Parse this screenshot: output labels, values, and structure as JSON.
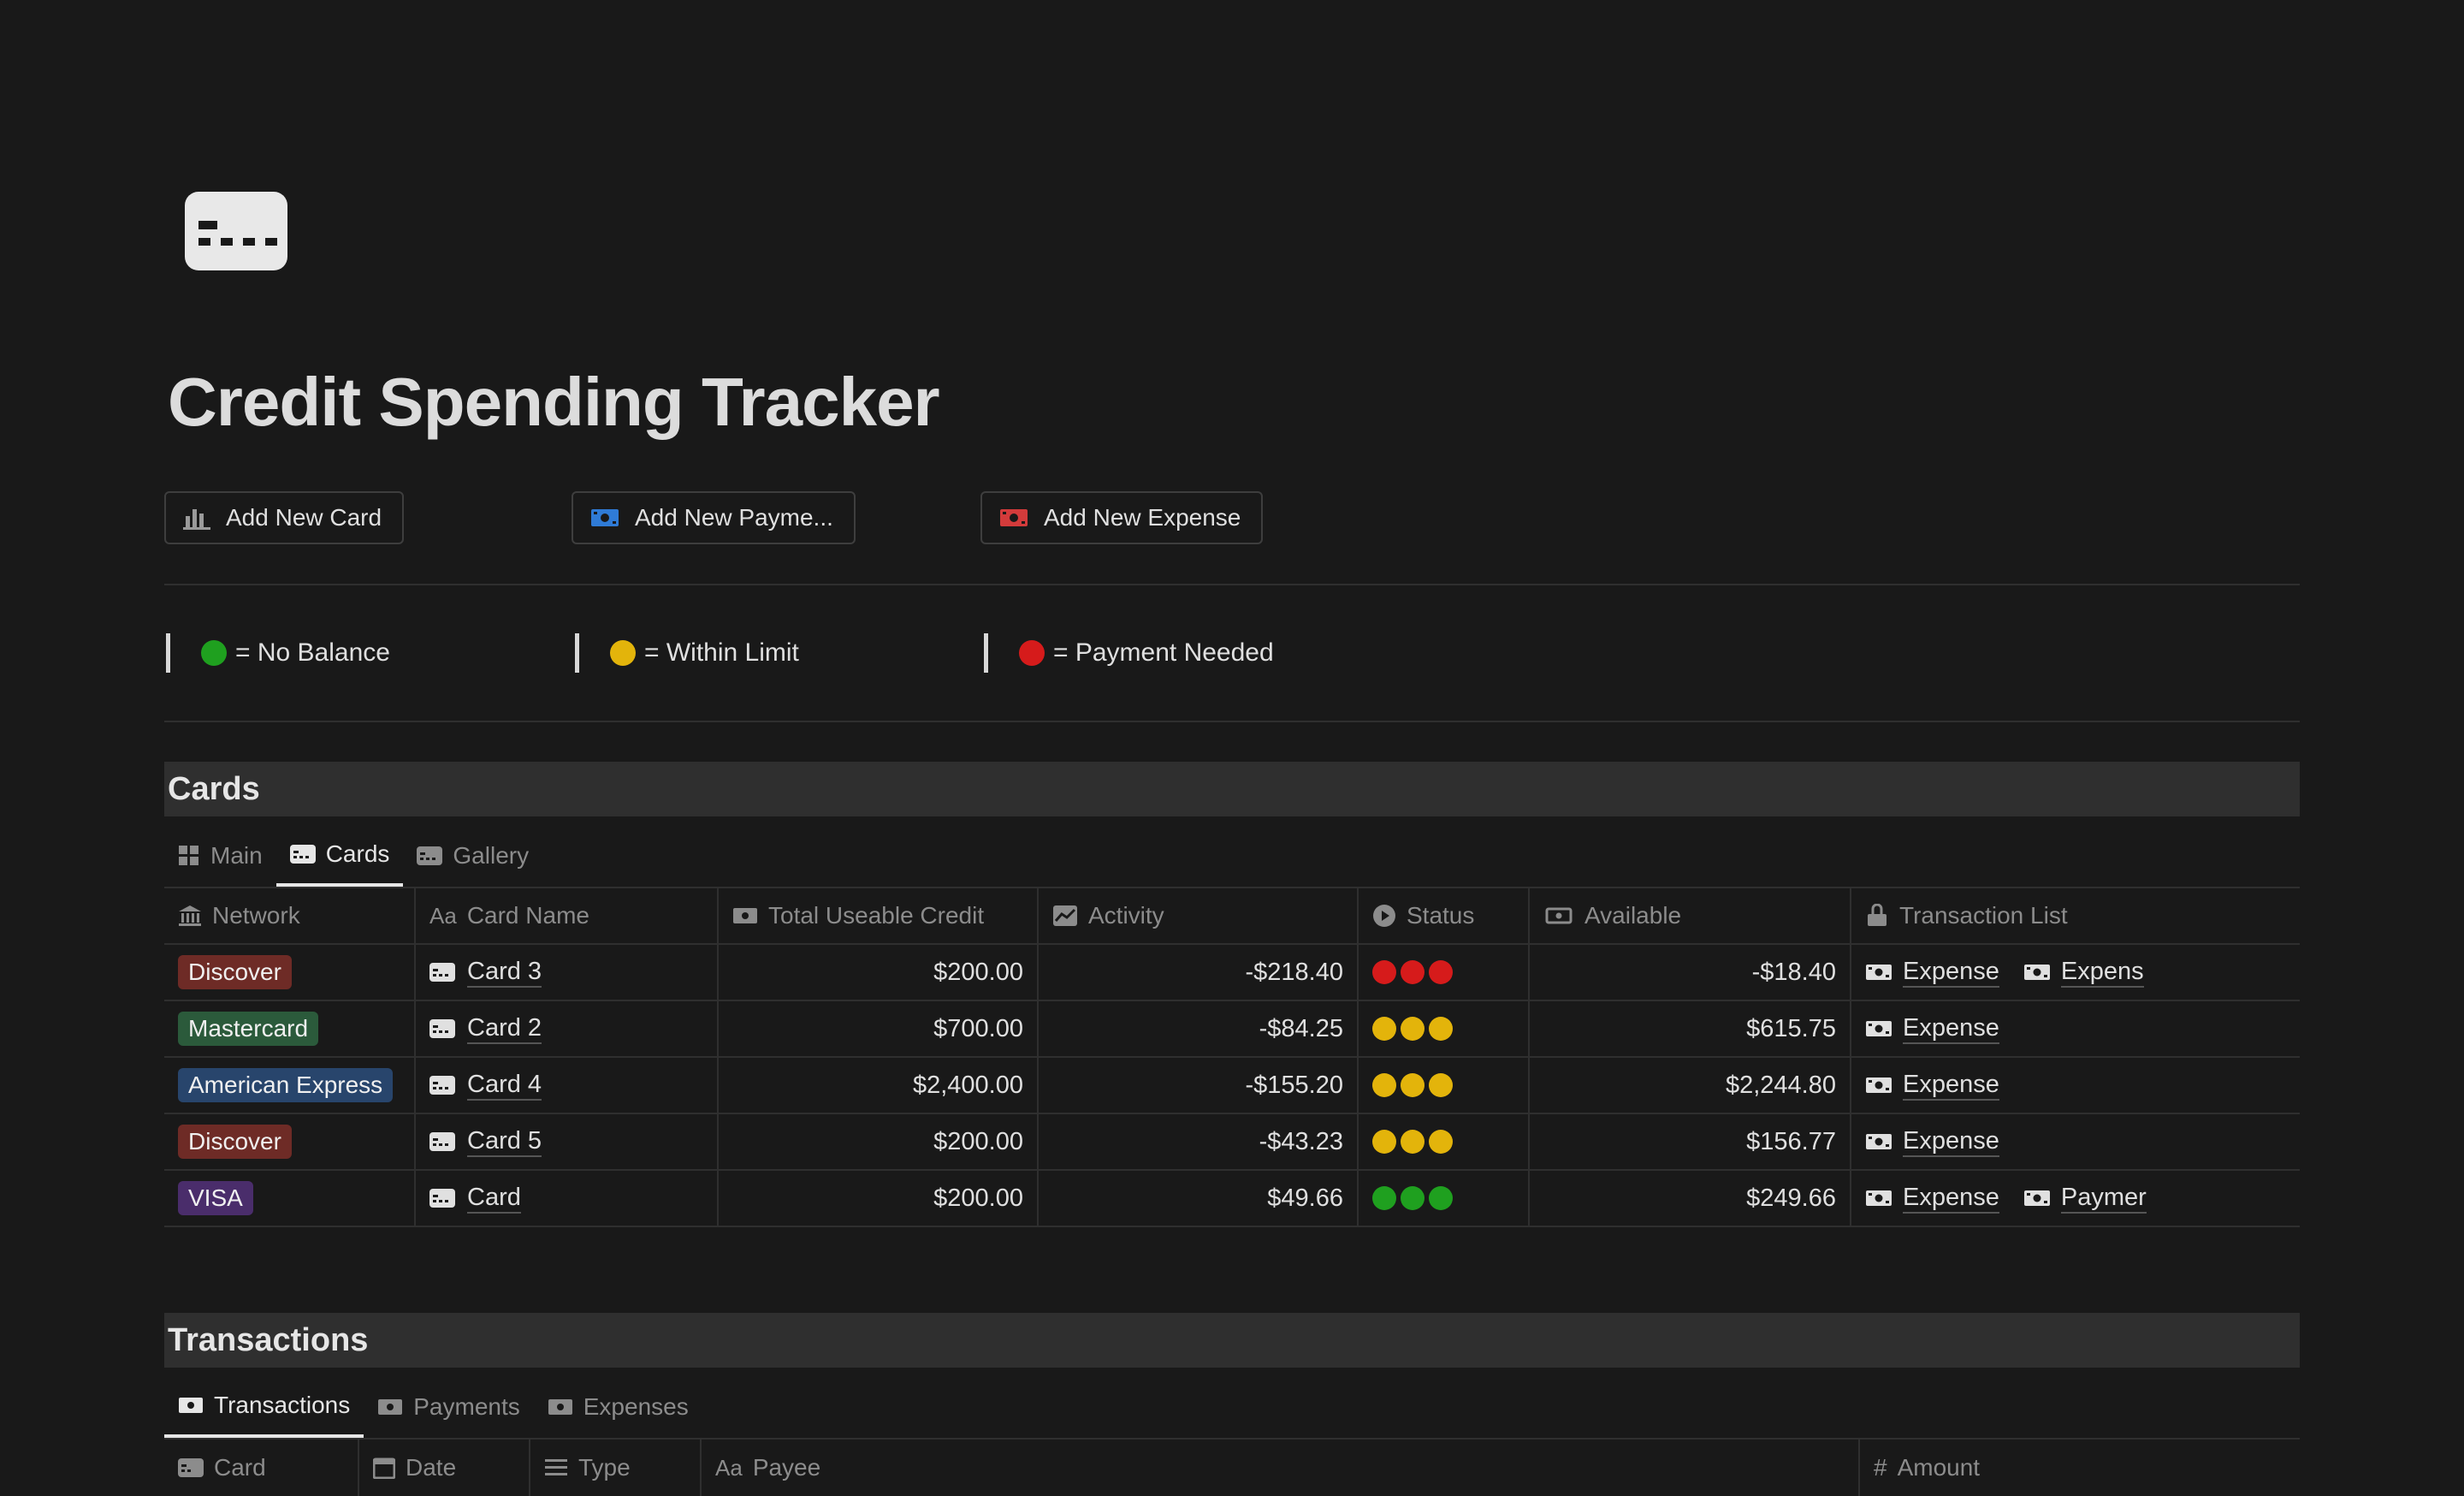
{
  "page": {
    "title": "Credit Spending Tracker",
    "icon": "credit-card-icon"
  },
  "buttons": [
    {
      "label": "Add New Card",
      "icon": "bar-chart-icon"
    },
    {
      "label": "Add New Payme...",
      "icon": "blue-money-icon"
    },
    {
      "label": "Add New Expense",
      "icon": "red-money-icon"
    }
  ],
  "legend": [
    {
      "label": "= No Balance",
      "color": "#1fa01f"
    },
    {
      "label": "= Within Limit",
      "color": "#e3b40b"
    },
    {
      "label": "= Payment Needed",
      "color": "#d61b1b"
    }
  ],
  "cards": {
    "title": "Cards",
    "tabs": [
      {
        "label": "Main",
        "icon": "grid-icon"
      },
      {
        "label": "Cards",
        "icon": "credit-card-icon"
      },
      {
        "label": "Gallery",
        "icon": "credit-card-icon"
      }
    ],
    "active_tab": "Cards",
    "columns": [
      {
        "label": "Network",
        "icon": "bank-icon"
      },
      {
        "label": "Card Name",
        "icon": "text-aa-icon"
      },
      {
        "label": "Total Useable Credit",
        "icon": "money-icon"
      },
      {
        "label": "Activity",
        "icon": "chart-icon"
      },
      {
        "label": "Status",
        "icon": "play-circle-icon"
      },
      {
        "label": "Available",
        "icon": "money-wings-icon"
      },
      {
        "label": "Transaction List",
        "icon": "arrow-up-right-icon"
      }
    ],
    "rows": [
      {
        "network": "Discover",
        "network_color": "#6e2b26",
        "name": "Card 3",
        "credit": "$200.00",
        "activity": "-$218.40",
        "status": "red",
        "available": "-$18.40",
        "transactions": [
          "Expense",
          "Expens"
        ]
      },
      {
        "network": "Mastercard",
        "network_color": "#2b5a3b",
        "name": "Card 2",
        "credit": "$700.00",
        "activity": "-$84.25",
        "status": "yellow",
        "available": "$615.75",
        "transactions": [
          "Expense"
        ]
      },
      {
        "network": "American Express",
        "network_color": "#28456c",
        "name": "Card 4",
        "credit": "$2,400.00",
        "activity": "-$155.20",
        "status": "yellow",
        "available": "$2,244.80",
        "transactions": [
          "Expense"
        ]
      },
      {
        "network": "Discover",
        "network_color": "#6e2b26",
        "name": "Card 5",
        "credit": "$200.00",
        "activity": "-$43.23",
        "status": "yellow",
        "available": "$156.77",
        "transactions": [
          "Expense"
        ]
      },
      {
        "network": "VISA",
        "network_color": "#4a2d6b",
        "name": "Card",
        "credit": "$200.00",
        "activity": "$49.66",
        "status": "green",
        "available": "$249.66",
        "transactions": [
          "Expense",
          "Paymer"
        ]
      }
    ]
  },
  "transactions": {
    "title": "Transactions",
    "tabs": [
      {
        "label": "Transactions",
        "icon": "money-icon"
      },
      {
        "label": "Payments",
        "icon": "money-icon"
      },
      {
        "label": "Expenses",
        "icon": "money-icon"
      }
    ],
    "active_tab": "Transactions",
    "columns": [
      {
        "label": "Card",
        "icon": "credit-card-icon"
      },
      {
        "label": "Date",
        "icon": "calendar-icon"
      },
      {
        "label": "Type",
        "icon": "list-icon"
      },
      {
        "label": "Payee",
        "icon": "text-aa-icon"
      },
      {
        "label": "Amount",
        "icon": "hash-icon"
      }
    ]
  },
  "colors": {
    "background": "#191919",
    "red": "#d61b1b",
    "yellow": "#e3b40b",
    "green": "#1fa01f"
  }
}
